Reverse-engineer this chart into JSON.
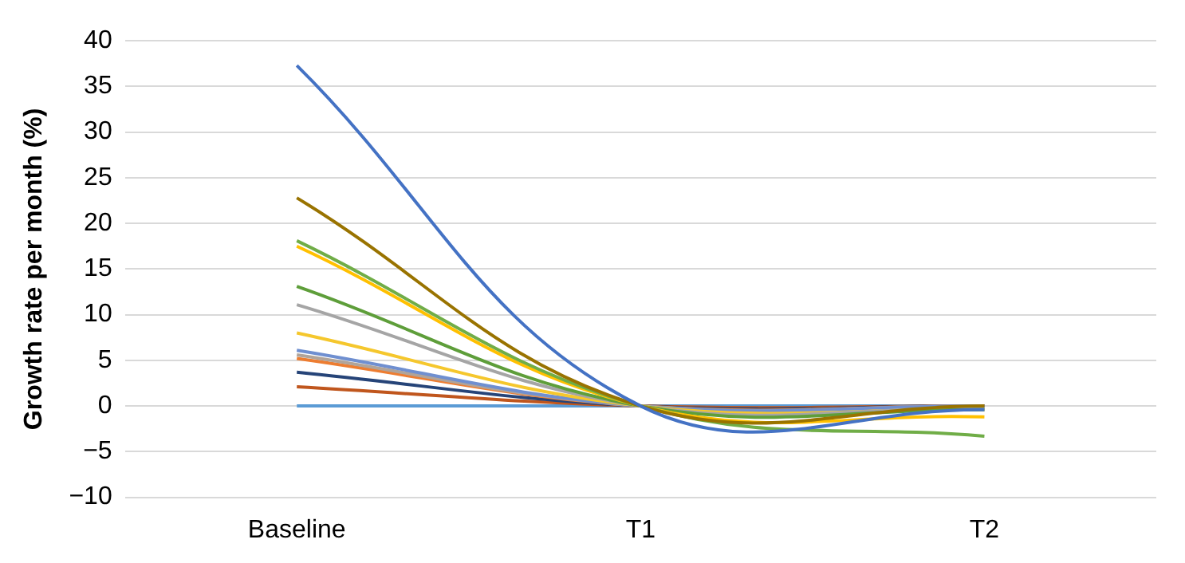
{
  "chart_data": {
    "type": "line",
    "ylabel": "Growth rate per month (%)",
    "categories": [
      "Baseline",
      "T1",
      "T2"
    ],
    "series": [
      {
        "color": "#4472c4",
        "values": [
          37.3,
          0,
          -0.4
        ]
      },
      {
        "color": "#997300",
        "values": [
          22.8,
          0,
          0
        ]
      },
      {
        "color": "#70ad47",
        "values": [
          18.1,
          0,
          -3.3
        ]
      },
      {
        "color": "#ffc000",
        "values": [
          17.5,
          0,
          -1.2
        ]
      },
      {
        "color": "#5e9e3a",
        "values": [
          13.1,
          0,
          -0.4
        ]
      },
      {
        "color": "#a5a5a5",
        "values": [
          11.1,
          0,
          -0.2
        ]
      },
      {
        "color": "#f5c72d",
        "values": [
          8,
          0,
          -0.4
        ]
      },
      {
        "color": "#6f8fd0",
        "values": [
          6.1,
          0,
          0
        ]
      },
      {
        "color": "#b0a49a",
        "values": [
          5.6,
          0,
          0
        ]
      },
      {
        "color": "#ed7d31",
        "values": [
          5.2,
          0,
          0
        ]
      },
      {
        "color": "#264478",
        "values": [
          3.7,
          0,
          0
        ]
      },
      {
        "color": "#c0561d",
        "values": [
          2.1,
          0,
          0
        ]
      },
      {
        "color": "#5b9bd5",
        "values": [
          0,
          0,
          0
        ]
      }
    ],
    "ylim": [
      -10,
      40
    ],
    "yticks": [
      {
        "value": -10,
        "label": "−10"
      },
      {
        "value": -5,
        "label": "−5"
      },
      0,
      5,
      10,
      15,
      20,
      25,
      30,
      35,
      40
    ],
    "grid": "y",
    "legend": false,
    "marker": "none",
    "line_style": "solid"
  }
}
